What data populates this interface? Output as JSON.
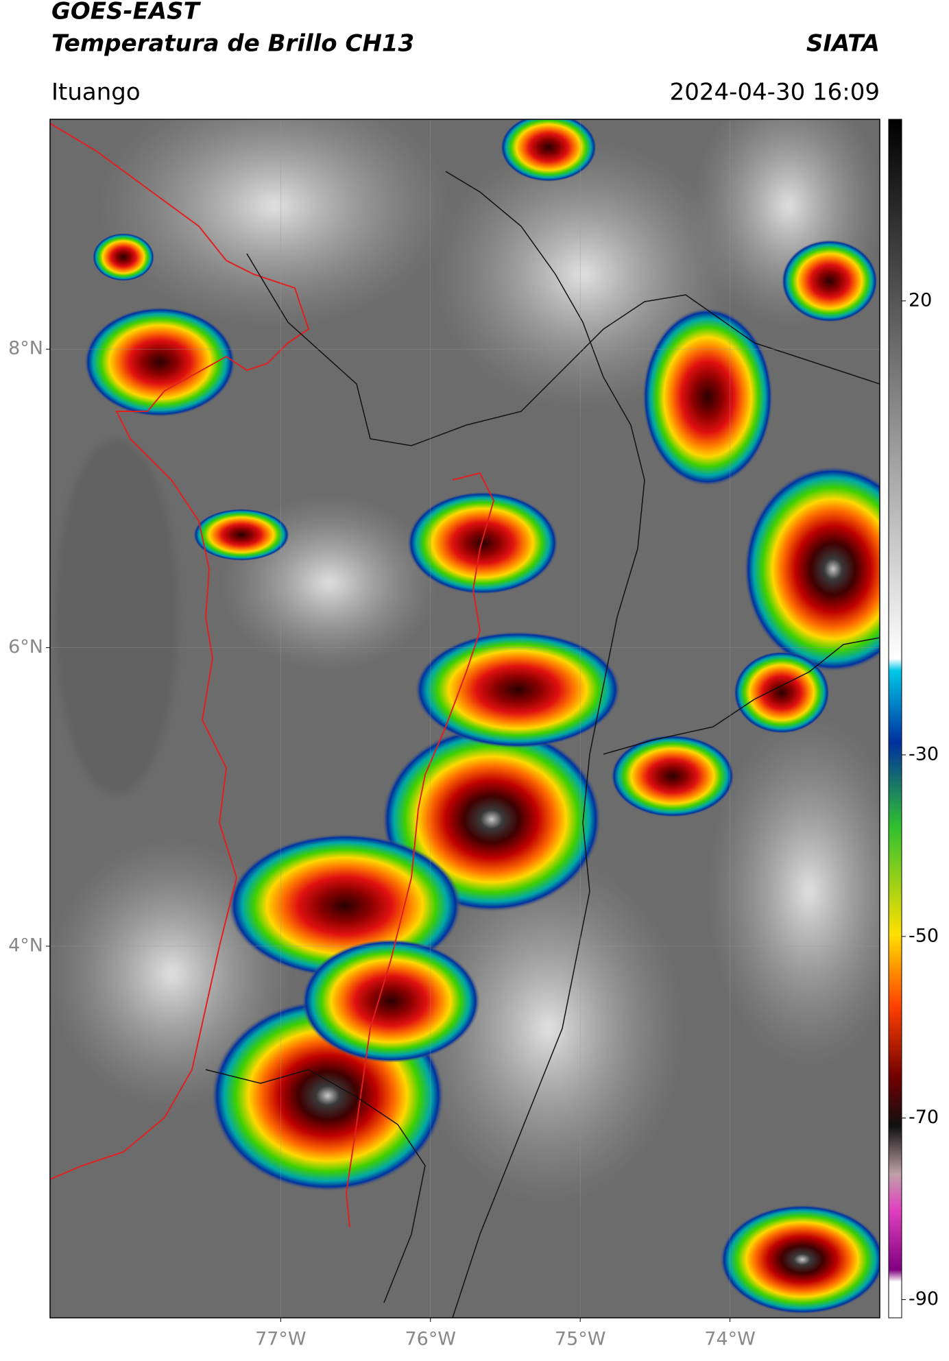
{
  "header": {
    "title": "GOES-EAST",
    "subtitle": "Temperatura de Brillo CH13",
    "source": "SIATA",
    "location": "Ituango",
    "datetime": "2024-04-30 16:09"
  },
  "map": {
    "xlim": [
      -78.54,
      -73.0
    ],
    "ylim": [
      1.51,
      9.54
    ],
    "xticks": [
      {
        "value": -77,
        "label": "77°W"
      },
      {
        "value": -76,
        "label": "76°W"
      },
      {
        "value": -75,
        "label": "75°W"
      },
      {
        "value": -74,
        "label": "74°W"
      }
    ],
    "yticks": [
      {
        "value": 8,
        "label": "8°N"
      },
      {
        "value": 6,
        "label": "6°N"
      },
      {
        "value": 4,
        "label": "4°N"
      }
    ],
    "grid": true
  },
  "colorbar": {
    "lim": [
      -92,
      40
    ],
    "ticks": [
      20,
      -30,
      -50,
      -70,
      -90
    ]
  }
}
